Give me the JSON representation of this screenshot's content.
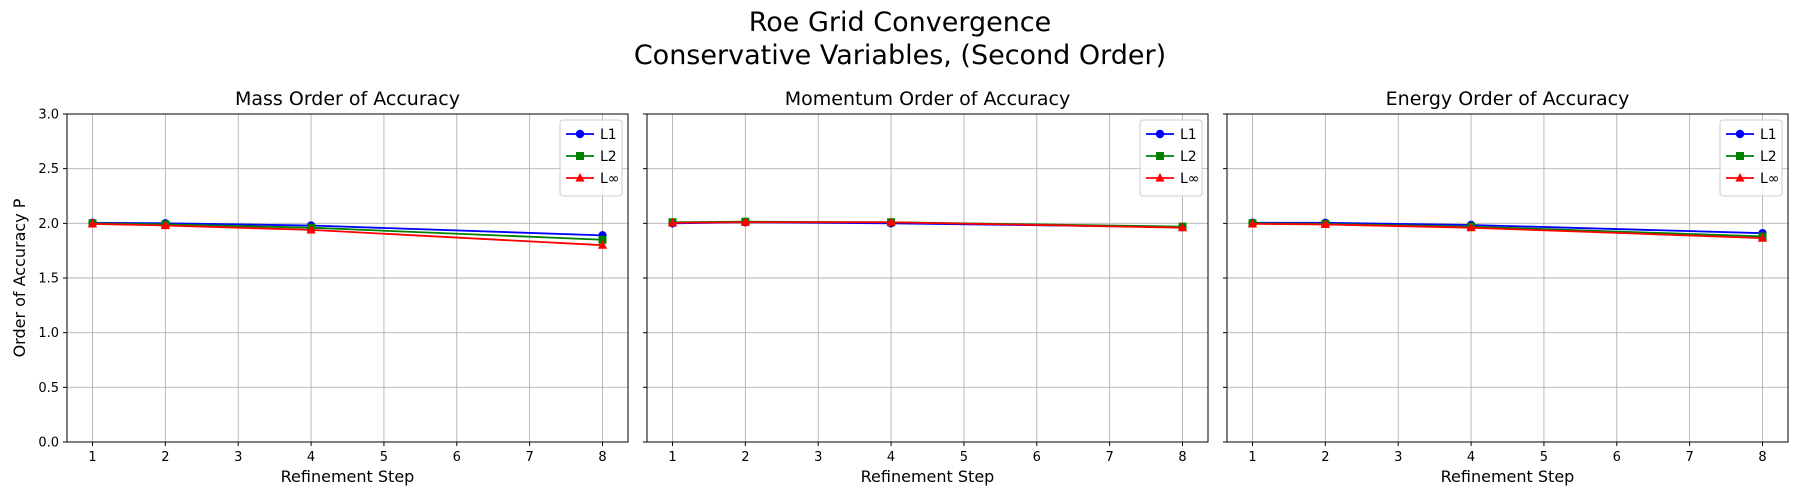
{
  "figure": {
    "title_line1": "Roe Grid Convergence",
    "title_line2": "Conservative Variables, (Second Order)"
  },
  "colors": {
    "L1": "#0000ff",
    "L2": "#008000",
    "Linf": "#ff0000",
    "grid": "#b0b0b0"
  },
  "chart_data": [
    {
      "type": "line",
      "title": "Mass Order of Accuracy",
      "xlabel": "Refinement Step",
      "ylabel": "Order of Accuracy P",
      "xlim": [
        0.65,
        8.35
      ],
      "ylim": [
        0.0,
        3.0
      ],
      "xticks": [
        1,
        2,
        3,
        4,
        5,
        6,
        7,
        8
      ],
      "yticks": [
        0.0,
        0.5,
        1.0,
        1.5,
        2.0,
        2.5,
        3.0
      ],
      "grid": true,
      "legend_position": "top-right",
      "x": [
        1,
        2,
        4,
        8
      ],
      "series": [
        {
          "name": "L1",
          "marker": "circle",
          "color": "#0000ff",
          "values": [
            2.005,
            2.0,
            1.98,
            1.89
          ]
        },
        {
          "name": "L2",
          "marker": "square",
          "color": "#008000",
          "values": [
            2.0,
            1.99,
            1.96,
            1.85
          ]
        },
        {
          "name": "L∞",
          "marker": "triangle",
          "color": "#ff0000",
          "values": [
            1.995,
            1.98,
            1.94,
            1.8
          ]
        }
      ]
    },
    {
      "type": "line",
      "title": "Momentum Order of Accuracy",
      "xlabel": "Refinement Step",
      "ylabel": "",
      "xlim": [
        0.65,
        8.35
      ],
      "ylim": [
        0.0,
        3.0
      ],
      "xticks": [
        1,
        2,
        3,
        4,
        5,
        6,
        7,
        8
      ],
      "yticks": [
        0.0,
        0.5,
        1.0,
        1.5,
        2.0,
        2.5,
        3.0
      ],
      "grid": true,
      "legend_position": "top-right",
      "x": [
        1,
        2,
        4,
        8
      ],
      "series": [
        {
          "name": "L1",
          "marker": "circle",
          "color": "#0000ff",
          "values": [
            2.0,
            2.01,
            2.0,
            1.965
          ]
        },
        {
          "name": "L2",
          "marker": "square",
          "color": "#008000",
          "values": [
            2.01,
            2.015,
            2.01,
            1.97
          ]
        },
        {
          "name": "L∞",
          "marker": "triangle",
          "color": "#ff0000",
          "values": [
            2.005,
            2.01,
            2.01,
            1.96
          ]
        }
      ]
    },
    {
      "type": "line",
      "title": "Energy Order of Accuracy",
      "xlabel": "Refinement Step",
      "ylabel": "",
      "xlim": [
        0.65,
        8.35
      ],
      "ylim": [
        0.0,
        3.0
      ],
      "xticks": [
        1,
        2,
        3,
        4,
        5,
        6,
        7,
        8
      ],
      "yticks": [
        0.0,
        0.5,
        1.0,
        1.5,
        2.0,
        2.5,
        3.0
      ],
      "grid": true,
      "legend_position": "top-right",
      "x": [
        1,
        2,
        4,
        8
      ],
      "series": [
        {
          "name": "L1",
          "marker": "circle",
          "color": "#0000ff",
          "values": [
            2.005,
            2.005,
            1.985,
            1.91
          ]
        },
        {
          "name": "L2",
          "marker": "square",
          "color": "#008000",
          "values": [
            2.0,
            1.995,
            1.97,
            1.88
          ]
        },
        {
          "name": "L∞",
          "marker": "triangle",
          "color": "#ff0000",
          "values": [
            1.995,
            1.99,
            1.96,
            1.865
          ]
        }
      ]
    }
  ]
}
